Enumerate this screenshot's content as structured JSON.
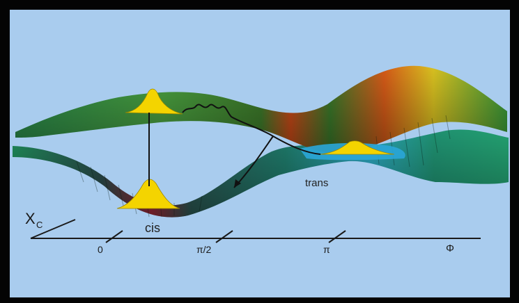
{
  "diagram": {
    "label_trans": "trans",
    "label_cis": "cis",
    "axis_label_x": "X",
    "axis_label_x_sub": "C",
    "ticks": [
      "0",
      "π/2",
      "π",
      "Φ"
    ]
  },
  "colors": {
    "background": "#a9ccee",
    "frame": "#040404",
    "wavepacket": "#f4d400",
    "axis": "#1a1a1a"
  }
}
